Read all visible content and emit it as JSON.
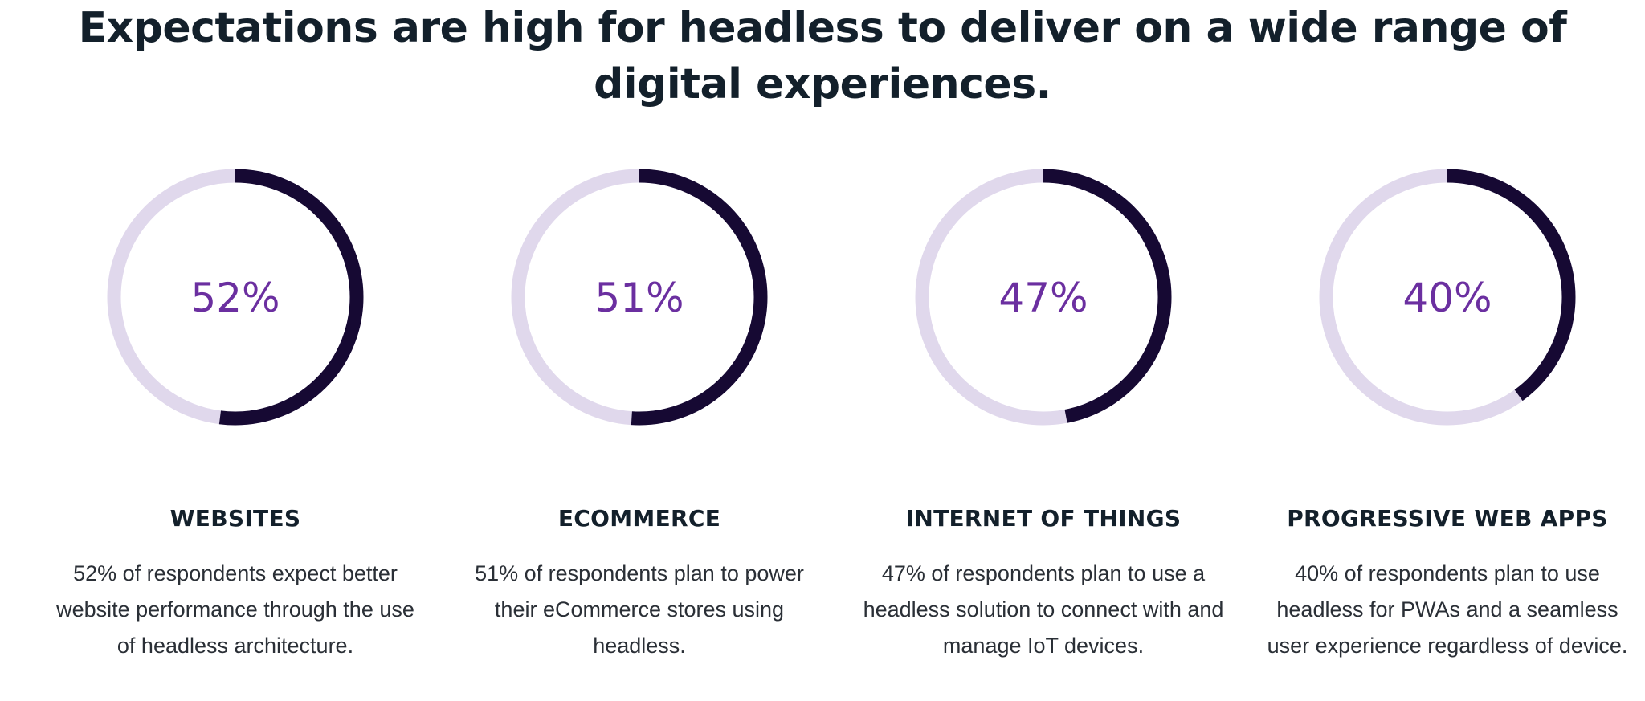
{
  "header": {
    "title_line1": "Expectations are high for headless to deliver on a wide range of",
    "title_line2": "digital experiences."
  },
  "colors": {
    "track": "#e0d8ec",
    "progress": "#160933",
    "percent_text": "#6b2fa0",
    "heading": "#13202b"
  },
  "chart_data": [
    {
      "type": "pie",
      "style": "progress-ring",
      "label": "52%",
      "value": 52,
      "max": 100,
      "title": "WEBSITES",
      "description": "52% of respondents expect better website performance through the use of headless architecture."
    },
    {
      "type": "pie",
      "style": "progress-ring",
      "label": "51%",
      "value": 51,
      "max": 100,
      "title": "ECOMMERCE",
      "description": "51% of respondents plan to power their eCommerce stores using headless."
    },
    {
      "type": "pie",
      "style": "progress-ring",
      "label": "47%",
      "value": 47,
      "max": 100,
      "title": "INTERNET OF THINGS",
      "description": "47% of respondents plan to use a headless solution to connect with and manage IoT devices."
    },
    {
      "type": "pie",
      "style": "progress-ring",
      "label": "40%",
      "value": 40,
      "max": 100,
      "title": "PROGRESSIVE WEB APPS",
      "description": "40% of respondents plan to use headless for PWAs and a seamless user experience regardless of device."
    }
  ]
}
